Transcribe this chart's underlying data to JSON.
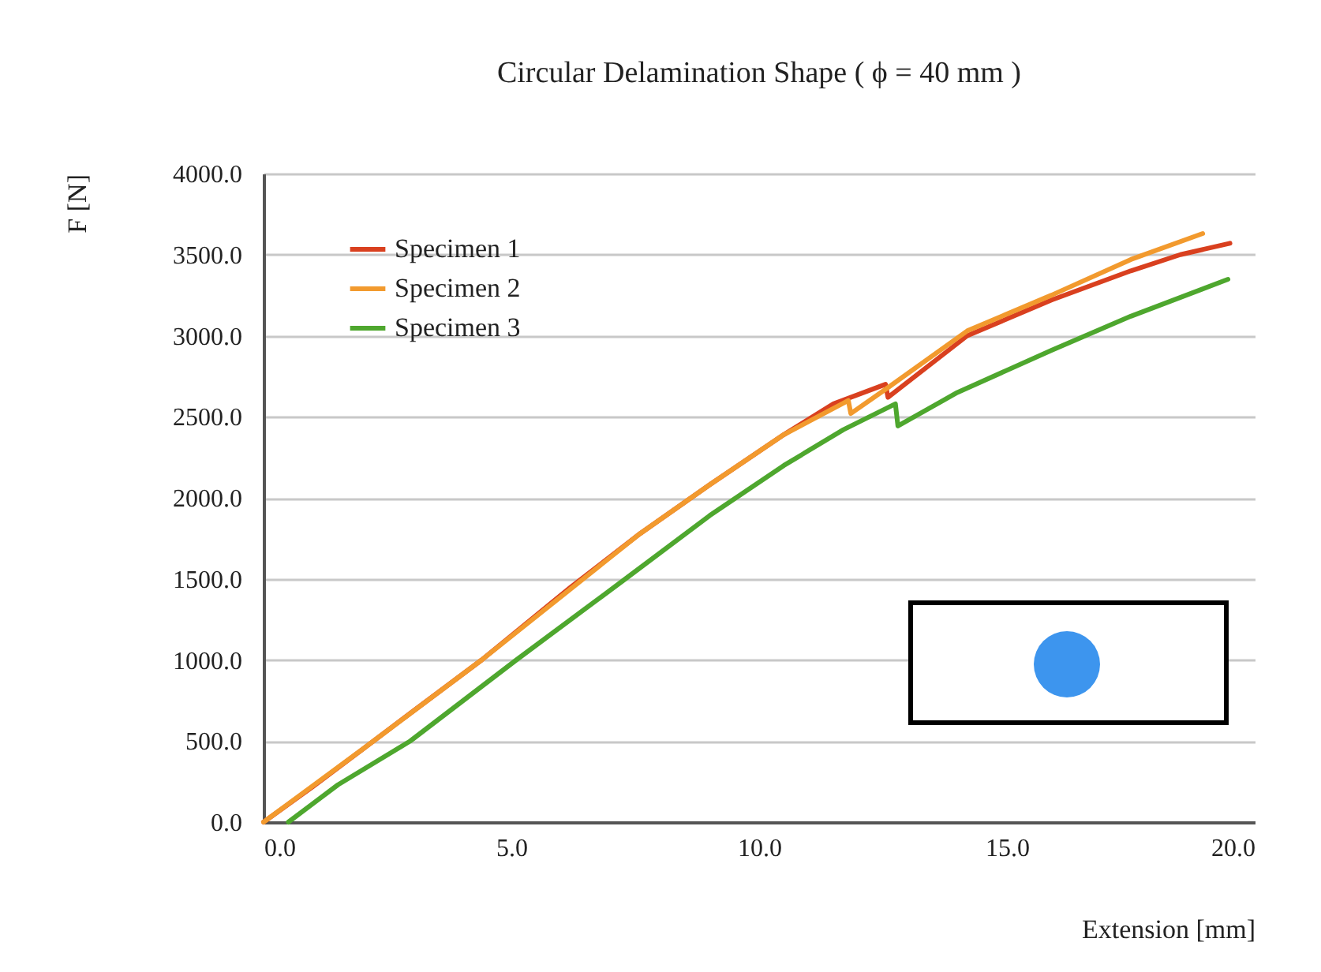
{
  "chart_data": {
    "type": "line",
    "title": "Circular Delamination Shape ( ϕ = 40 mm )",
    "xlabel": "Extension [mm]",
    "ylabel": "F [N]",
    "xlim": [
      0,
      20
    ],
    "xticks": [
      {
        "value": 0,
        "label": "0.0"
      },
      {
        "value": 5,
        "label": "5.0"
      },
      {
        "value": 10,
        "label": "10.0"
      },
      {
        "value": 15,
        "label": "15.0"
      },
      {
        "value": 20,
        "label": "20.0"
      }
    ],
    "ylim": [
      0,
      4000
    ],
    "yticks": [
      {
        "value": 0,
        "label": "0.0"
      },
      {
        "value": 500,
        "label": "500.0"
      },
      {
        "value": 1000,
        "label": "1000.0"
      },
      {
        "value": 1500,
        "label": "1500.0"
      },
      {
        "value": 2000,
        "label": "2000.0"
      },
      {
        "value": 2500,
        "label": "2500.0"
      },
      {
        "value": 3000,
        "label": "3000.0"
      },
      {
        "value": 3500,
        "label": "3500.0"
      },
      {
        "value": 4000,
        "label": "4000.0"
      }
    ],
    "grid": "y",
    "legend": "top left",
    "marker": "none",
    "line_style": "solid",
    "series": [
      {
        "name": "Specimen 1",
        "color": "#d9401f",
        "x": [
          0,
          1,
          2,
          3,
          4.4,
          6.2,
          7.6,
          9,
          10.5,
          11.5,
          12.55,
          12.6,
          14.2,
          15.9,
          17.5,
          18.5,
          19.5
        ],
        "values": [
          0,
          220,
          450,
          680,
          1000,
          1450,
          1780,
          2080,
          2390,
          2580,
          2700,
          2620,
          3000,
          3220,
          3400,
          3500,
          3570
        ]
      },
      {
        "name": "Specimen 2",
        "color": "#f29a2e",
        "x": [
          0,
          2,
          4.4,
          7.6,
          9,
          10.5,
          11.8,
          11.85,
          12.6,
          14.2,
          15.9,
          17.5,
          18.95
        ],
        "values": [
          0,
          450,
          1000,
          1780,
          2080,
          2390,
          2600,
          2520,
          2680,
          3030,
          3250,
          3470,
          3630
        ]
      },
      {
        "name": "Specimen 3",
        "color": "#4ea72e",
        "x": [
          0.5,
          1.5,
          2.96,
          5.1,
          7.3,
          9,
          10.5,
          11.7,
          12.75,
          12.8,
          14,
          15.9,
          17.5,
          19.46
        ],
        "values": [
          0,
          230,
          500,
          1000,
          1500,
          1890,
          2200,
          2420,
          2580,
          2443,
          2650,
          2910,
          3120,
          3348
        ]
      }
    ]
  }
}
